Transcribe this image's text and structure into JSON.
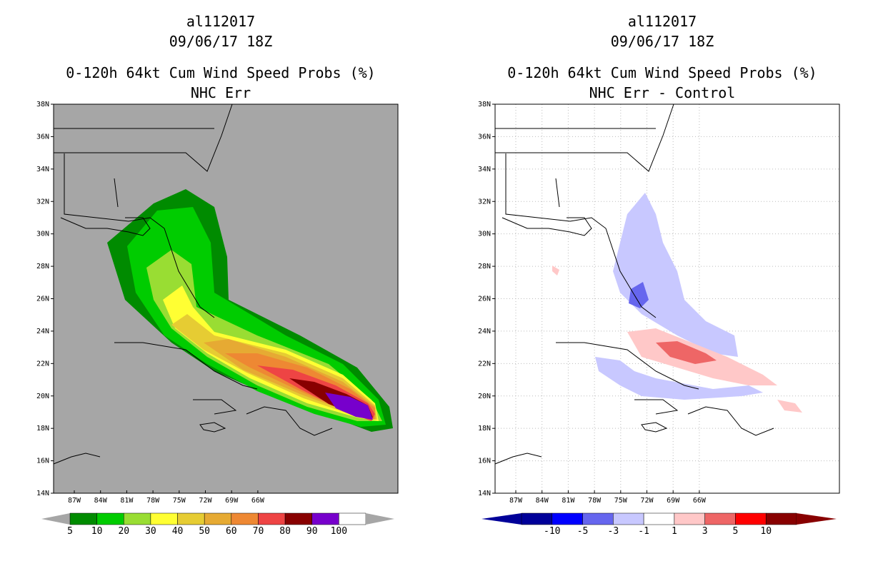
{
  "panels": [
    {
      "title_line1": "al112017",
      "title_line2": "09/06/17 18Z",
      "title_line3": "0-120h 64kt Cum Wind Speed Probs (%)",
      "title_line4": "NHC Err",
      "background": "#a6a6a6",
      "colorbar": {
        "labels": [
          "5",
          "10",
          "20",
          "30",
          "40",
          "50",
          "60",
          "70",
          "80",
          "90",
          "100"
        ],
        "colors": [
          "#008b00",
          "#00cc00",
          "#99dd33",
          "#ffff33",
          "#e6cc33",
          "#e6aa33",
          "#ee8833",
          "#ee4444",
          "#880000",
          "#7700cc",
          "#ffffff"
        ]
      }
    },
    {
      "title_line1": "al112017",
      "title_line2": "09/06/17 18Z",
      "title_line3": "0-120h 64kt Cum Wind Speed Probs (%)",
      "title_line4": "NHC Err - Control",
      "background": "#ffffff",
      "colorbar": {
        "labels": [
          "-10",
          "-5",
          "-3",
          "-1",
          "1",
          "3",
          "5",
          "10"
        ],
        "colors": [
          "#000099",
          "#0000ff",
          "#6666ee",
          "#c8c8ff",
          "#ffffff",
          "#ffc8c8",
          "#ee6666",
          "#ff0000",
          "#880000"
        ]
      }
    }
  ],
  "axes": {
    "lat_labels": [
      "38N",
      "36N",
      "34N",
      "32N",
      "30N",
      "28N",
      "26N",
      "24N",
      "22N",
      "20N",
      "18N",
      "16N",
      "14N"
    ],
    "lon_labels": [
      "87W",
      "84W",
      "81W",
      "78W",
      "75W",
      "72W",
      "69W",
      "66W"
    ]
  }
}
